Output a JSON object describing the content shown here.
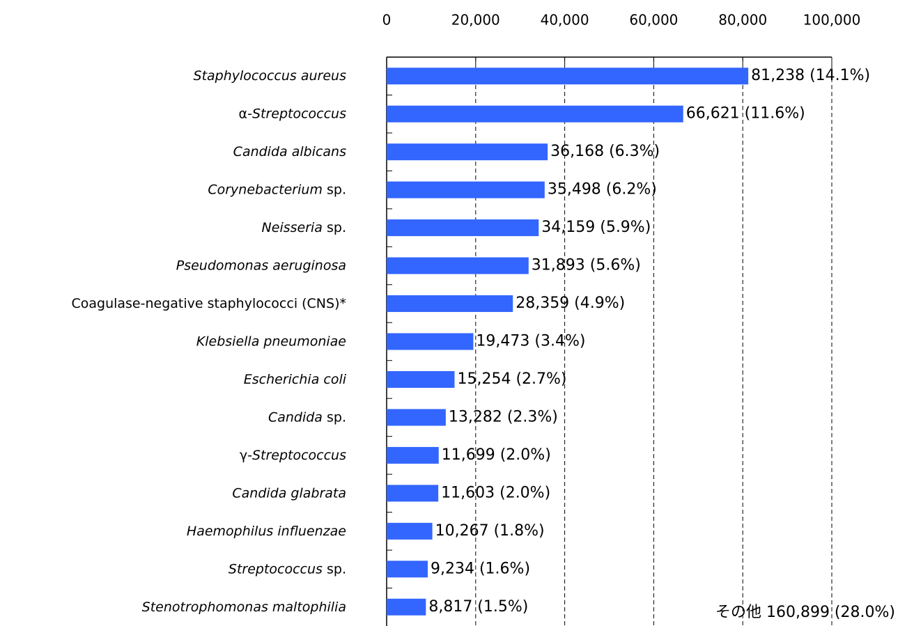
{
  "chart_data": {
    "type": "bar",
    "orientation": "horizontal",
    "categories": [
      "Staphylococcus aureus",
      "α-Streptococcus",
      "Candida albicans",
      "Corynebacterium sp.",
      "Neisseria sp.",
      "Pseudomonas aeruginosa",
      "Coagulase-negative staphylococci (CNS)*",
      "Klebsiella pneumoniae",
      "Escherichia coli",
      "Candida sp.",
      "γ-Streptococcus",
      "Candida glabrata",
      "Haemophilus influenzae",
      "Streptococcus sp.",
      "Stenotrophomonas maltophilia"
    ],
    "category_italic": [
      [
        0,
        21
      ],
      [
        2,
        15
      ],
      [
        0,
        16
      ],
      [
        0,
        15
      ],
      [
        0,
        9
      ],
      [
        0,
        22
      ],
      null,
      [
        0,
        21
      ],
      [
        0,
        16
      ],
      [
        0,
        7
      ],
      [
        2,
        15
      ],
      [
        0,
        16
      ],
      [
        0,
        22
      ],
      [
        0,
        13
      ],
      [
        0,
        28
      ]
    ],
    "values": [
      81238,
      66621,
      36168,
      35498,
      34159,
      31893,
      28359,
      19473,
      15254,
      13282,
      11699,
      11603,
      10267,
      9234,
      8817
    ],
    "value_labels": [
      "81,238 (14.1%)",
      "66,621 (11.6%)",
      "36,168 (6.3%)",
      "35,498 (6.2%)",
      "34,159 (5.9%)",
      "31,893 (5.6%)",
      "28,359 (4.9%)",
      "19,473 (3.4%)",
      "15,254 (2.7%)",
      "13,282 (2.3%)",
      "11,699 (2.0%)",
      "11,603 (2.0%)",
      "10,267 (1.8%)",
      "9,234 (1.6%)",
      "8,817 (1.5%)"
    ],
    "color": "#3366ff",
    "xlim": [
      0,
      100000
    ],
    "xticks": [
      0,
      {
        "value": 20000,
        "label": "20,000"
      },
      {
        "value": 40000,
        "label": "40,000"
      },
      {
        "value": 60000,
        "label": "60,000"
      },
      {
        "value": 80000,
        "label": "80,000"
      },
      {
        "value": 100000,
        "label": "100,000"
      }
    ],
    "grid": true,
    "annotation": "その他 160,899 (28.0%)"
  }
}
